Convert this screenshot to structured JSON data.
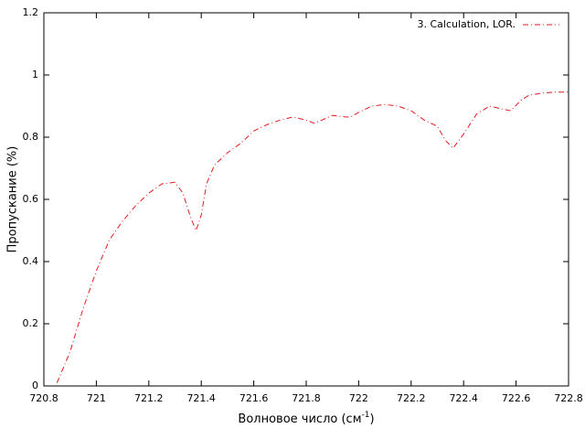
{
  "chart_data": {
    "type": "line",
    "xlabel": [
      "Волновое число (см",
      "-1",
      ")"
    ],
    "ylabel": "Пропускание (%)",
    "legend": "top right",
    "x": [
      720.85,
      720.9,
      720.95,
      721.0,
      721.05,
      721.1,
      721.15,
      721.2,
      721.25,
      721.3,
      721.33,
      721.36,
      721.38,
      721.4,
      721.42,
      721.45,
      721.5,
      721.55,
      721.6,
      721.65,
      721.7,
      721.75,
      721.8,
      721.83,
      721.86,
      721.9,
      721.95,
      721.97,
      722.0,
      722.05,
      722.1,
      722.15,
      722.2,
      722.25,
      722.3,
      722.33,
      722.36,
      722.4,
      722.45,
      722.5,
      722.55,
      722.58,
      722.62,
      722.65,
      722.7,
      722.75,
      722.8
    ],
    "series": [
      {
        "name": "3. Calculation, LOR.",
        "color": "#e41a1c",
        "values": [
          0.01,
          0.11,
          0.25,
          0.37,
          0.47,
          0.53,
          0.58,
          0.62,
          0.65,
          0.655,
          0.62,
          0.54,
          0.5,
          0.55,
          0.65,
          0.71,
          0.75,
          0.78,
          0.82,
          0.84,
          0.855,
          0.865,
          0.855,
          0.845,
          0.855,
          0.87,
          0.865,
          0.865,
          0.88,
          0.9,
          0.905,
          0.9,
          0.885,
          0.855,
          0.835,
          0.79,
          0.765,
          0.81,
          0.875,
          0.9,
          0.89,
          0.885,
          0.92,
          0.935,
          0.942,
          0.945,
          0.945
        ]
      }
    ],
    "xlim": [
      720.8,
      722.8
    ],
    "xticks": [
      720.8,
      721,
      721.2,
      721.4,
      721.6,
      721.8,
      722,
      722.2,
      722.4,
      722.6,
      722.8
    ],
    "ylim": [
      0,
      1.2
    ],
    "yticks": [
      0,
      0.2,
      0.4,
      0.6,
      0.8,
      1,
      1.2
    ]
  }
}
